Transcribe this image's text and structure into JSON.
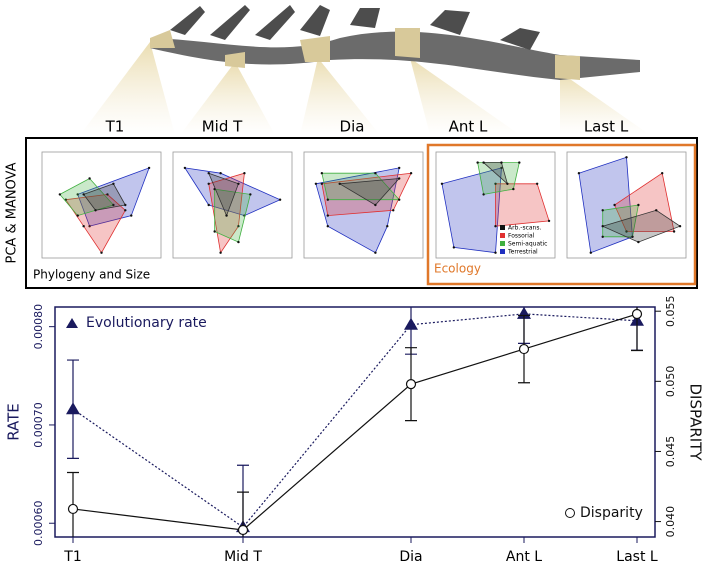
{
  "chart_data": {
    "type": "line",
    "categories": [
      "T1",
      "Mid T",
      "Dia",
      "Ant L",
      "Last L"
    ],
    "series": [
      {
        "name": "Evolutionary rate",
        "color": "#1a1a5e",
        "marker": "triangle",
        "line": "dotted",
        "axis": "y",
        "values": [
          0.000716,
          0.000596,
          0.000802,
          0.000813,
          0.000806
        ],
        "errors": [
          5e-05,
          6.3e-05,
          3e-05,
          3e-05,
          3e-05
        ]
      },
      {
        "name": "Disparity",
        "color": "#111111",
        "marker": "circle",
        "line": "solid",
        "axis": "y2",
        "values": [
          0.0409,
          0.0394,
          0.0498,
          0.0523,
          0.0548
        ],
        "errors": [
          0.0026,
          0.0027,
          0.0026,
          0.0024,
          0.0026
        ]
      }
    ],
    "ylabel": "RATE",
    "y2label": "DISPARITY",
    "ylim": [
      0.000586,
      0.00082
    ],
    "yticks": [
      {
        "value": 0.0006,
        "label": "0.00060"
      },
      {
        "value": 0.0007,
        "label": "0.00070"
      },
      {
        "value": 0.0008,
        "label": "0.00080"
      }
    ],
    "y2lim": [
      0.0389,
      0.0553
    ],
    "y2ticks": [
      {
        "value": 0.04,
        "label": "0.040"
      },
      0.045,
      {
        "value": 0.05,
        "label": "0.050"
      },
      0.055
    ]
  },
  "pca_panel": {
    "side_label": "PCA & MANOVA",
    "group_labels": [
      "Phylogeny and Size",
      "Ecology"
    ],
    "legend": [
      {
        "name": "Arb.-scans.",
        "color": "#111111"
      },
      {
        "name": "Fossorial",
        "color": "#e03030"
      },
      {
        "name": "Semi-aquatic",
        "color": "#40b040"
      },
      {
        "name": "Terrestrial",
        "color": "#2030c0"
      }
    ]
  }
}
